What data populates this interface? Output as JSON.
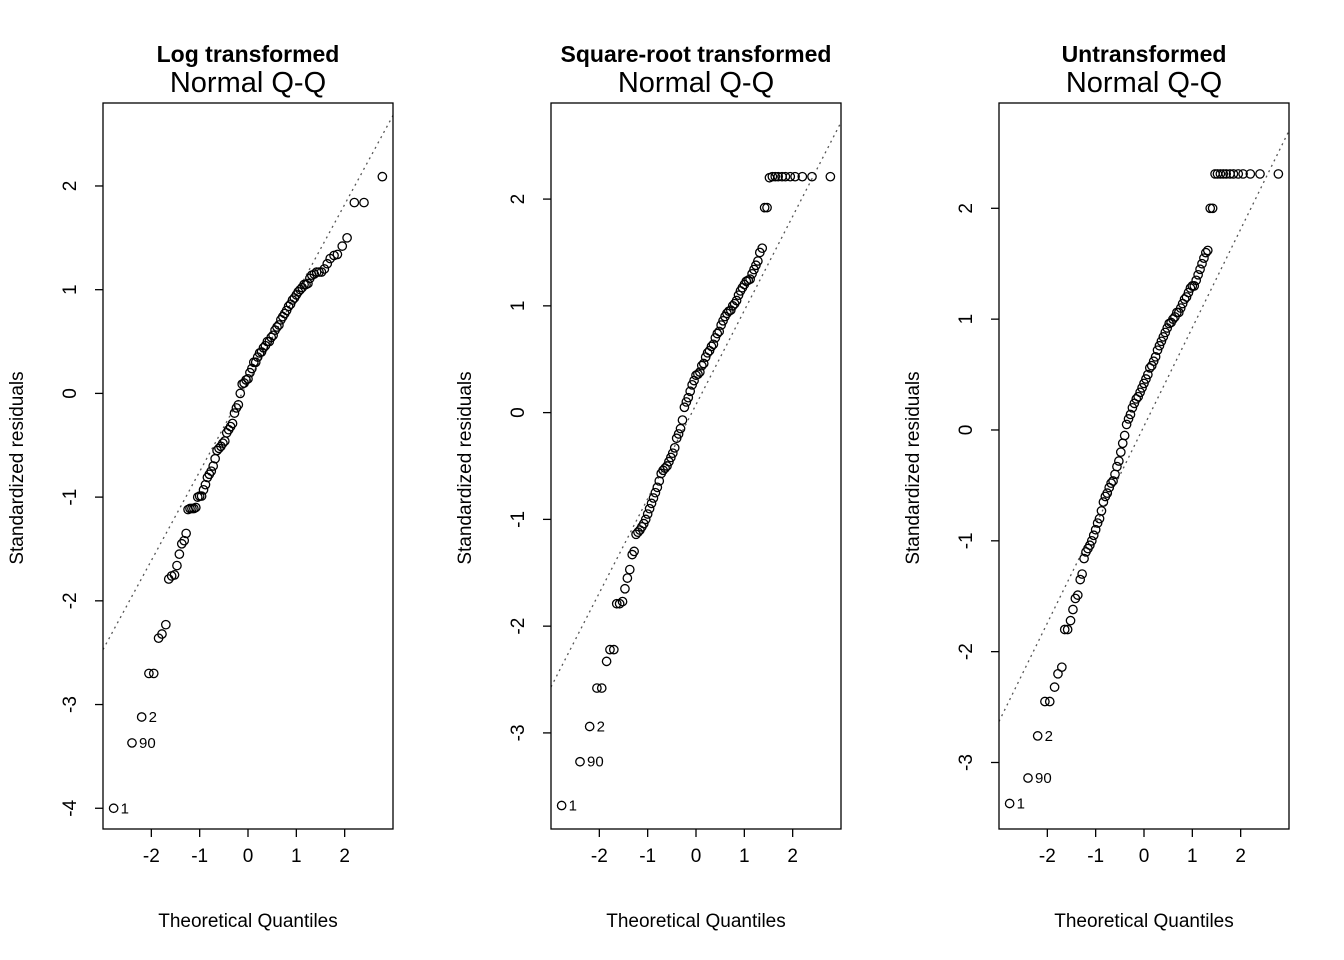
{
  "chart_data": [
    {
      "type": "scatter",
      "super_title": "Log transformed",
      "title": "Normal Q-Q",
      "xlabel": "Theoretical Quantiles",
      "ylabel": "Standardized residuals",
      "xlim": [
        -3.0,
        3.0
      ],
      "ylim": [
        -4.2,
        2.8
      ],
      "xticks": [
        -2,
        -1,
        0,
        1,
        2
      ],
      "yticks": [
        -4,
        -3,
        -2,
        -1,
        0,
        1,
        2
      ],
      "ref_line": [
        [
          -3.0,
          -2.47
        ],
        [
          3.0,
          2.68
        ]
      ],
      "points_x": [
        -2.78,
        -2.4,
        -2.2,
        -2.05,
        -1.95,
        -1.85,
        -1.78,
        -1.7,
        -1.64,
        -1.58,
        -1.52,
        -1.47,
        -1.42,
        -1.37,
        -1.32,
        -1.28,
        -1.24,
        -1.2,
        -1.16,
        -1.12,
        -1.08,
        -1.04,
        -1.0,
        -0.96,
        -0.92,
        -0.88,
        -0.84,
        -0.8,
        -0.76,
        -0.72,
        -0.68,
        -0.64,
        -0.6,
        -0.56,
        -0.52,
        -0.48,
        -0.44,
        -0.4,
        -0.36,
        -0.32,
        -0.28,
        -0.24,
        -0.2,
        -0.16,
        -0.12,
        -0.08,
        -0.04,
        0.0,
        0.04,
        0.08,
        0.12,
        0.16,
        0.2,
        0.24,
        0.28,
        0.32,
        0.36,
        0.4,
        0.44,
        0.48,
        0.52,
        0.56,
        0.6,
        0.64,
        0.68,
        0.72,
        0.76,
        0.8,
        0.84,
        0.88,
        0.92,
        0.96,
        1.0,
        1.04,
        1.08,
        1.12,
        1.16,
        1.2,
        1.24,
        1.28,
        1.32,
        1.37,
        1.42,
        1.47,
        1.52,
        1.58,
        1.64,
        1.7,
        1.78,
        1.85,
        1.95,
        2.05,
        2.2,
        2.4,
        2.78
      ],
      "points_y": [
        -4.0,
        -3.37,
        -3.12,
        -2.7,
        -2.7,
        -2.36,
        -2.32,
        -2.23,
        -1.79,
        -1.76,
        -1.75,
        -1.66,
        -1.55,
        -1.45,
        -1.42,
        -1.35,
        -1.12,
        -1.11,
        -1.11,
        -1.11,
        -1.1,
        -1.0,
        -0.99,
        -0.99,
        -0.93,
        -0.88,
        -0.81,
        -0.78,
        -0.75,
        -0.7,
        -0.63,
        -0.55,
        -0.53,
        -0.51,
        -0.48,
        -0.46,
        -0.38,
        -0.35,
        -0.32,
        -0.29,
        -0.19,
        -0.14,
        -0.11,
        0.0,
        0.09,
        0.1,
        0.13,
        0.14,
        0.2,
        0.24,
        0.3,
        0.3,
        0.35,
        0.39,
        0.4,
        0.44,
        0.46,
        0.5,
        0.5,
        0.54,
        0.56,
        0.61,
        0.64,
        0.66,
        0.71,
        0.74,
        0.77,
        0.8,
        0.84,
        0.86,
        0.9,
        0.92,
        0.95,
        0.98,
        1.0,
        1.02,
        1.05,
        1.05,
        1.06,
        1.11,
        1.14,
        1.15,
        1.17,
        1.17,
        1.17,
        1.2,
        1.25,
        1.3,
        1.33,
        1.34,
        1.42,
        1.5,
        1.84,
        1.84,
        2.09
      ],
      "labeled_points": [
        {
          "index": 0,
          "label": "1"
        },
        {
          "index": 2,
          "label": "2"
        },
        {
          "index": 1,
          "label": "90"
        }
      ]
    },
    {
      "type": "scatter",
      "super_title": "Square-root transformed",
      "title": "Normal Q-Q",
      "xlabel": "Theoretical Quantiles",
      "ylabel": "Standardized residuals",
      "xlim": [
        -3.0,
        3.0
      ],
      "ylim": [
        -3.9,
        2.9
      ],
      "xticks": [
        -2,
        -1,
        0,
        1,
        2
      ],
      "yticks": [
        -3,
        -2,
        -1,
        0,
        1,
        2
      ],
      "ref_line": [
        [
          -3.0,
          -2.57
        ],
        [
          3.0,
          2.72
        ]
      ],
      "points_x": [
        -2.78,
        -2.4,
        -2.2,
        -2.05,
        -1.95,
        -1.85,
        -1.78,
        -1.7,
        -1.64,
        -1.58,
        -1.52,
        -1.47,
        -1.42,
        -1.37,
        -1.32,
        -1.28,
        -1.24,
        -1.2,
        -1.16,
        -1.12,
        -1.08,
        -1.04,
        -1.0,
        -0.96,
        -0.92,
        -0.88,
        -0.84,
        -0.8,
        -0.76,
        -0.72,
        -0.68,
        -0.64,
        -0.6,
        -0.56,
        -0.52,
        -0.48,
        -0.44,
        -0.4,
        -0.36,
        -0.32,
        -0.28,
        -0.24,
        -0.2,
        -0.16,
        -0.12,
        -0.08,
        -0.04,
        0.0,
        0.04,
        0.08,
        0.12,
        0.16,
        0.2,
        0.24,
        0.28,
        0.32,
        0.36,
        0.4,
        0.44,
        0.48,
        0.52,
        0.56,
        0.6,
        0.64,
        0.68,
        0.72,
        0.76,
        0.8,
        0.84,
        0.88,
        0.92,
        0.96,
        1.0,
        1.04,
        1.08,
        1.12,
        1.16,
        1.2,
        1.24,
        1.28,
        1.32,
        1.37,
        1.42,
        1.47,
        1.52,
        1.58,
        1.64,
        1.7,
        1.78,
        1.85,
        1.95,
        2.05,
        2.2,
        2.4,
        2.78
      ],
      "points_y": [
        -3.68,
        -3.27,
        -2.94,
        -2.58,
        -2.58,
        -2.33,
        -2.22,
        -2.22,
        -1.79,
        -1.79,
        -1.77,
        -1.65,
        -1.55,
        -1.47,
        -1.33,
        -1.3,
        -1.14,
        -1.12,
        -1.1,
        -1.07,
        -1.04,
        -1.0,
        -0.95,
        -0.9,
        -0.85,
        -0.8,
        -0.75,
        -0.7,
        -0.64,
        -0.57,
        -0.54,
        -0.52,
        -0.5,
        -0.46,
        -0.42,
        -0.38,
        -0.33,
        -0.24,
        -0.2,
        -0.15,
        -0.07,
        0.05,
        0.1,
        0.14,
        0.2,
        0.26,
        0.3,
        0.35,
        0.36,
        0.38,
        0.44,
        0.46,
        0.52,
        0.56,
        0.58,
        0.62,
        0.64,
        0.7,
        0.74,
        0.76,
        0.82,
        0.86,
        0.9,
        0.93,
        0.95,
        0.96,
        1.0,
        1.02,
        1.05,
        1.1,
        1.14,
        1.17,
        1.2,
        1.23,
        1.24,
        1.25,
        1.3,
        1.34,
        1.38,
        1.42,
        1.5,
        1.54,
        1.92,
        1.92,
        2.2,
        2.21,
        2.21,
        2.21,
        2.21,
        2.21,
        2.21,
        2.21,
        2.21,
        2.21,
        2.21
      ],
      "labeled_points": [
        {
          "index": 0,
          "label": "1"
        },
        {
          "index": 2,
          "label": "2"
        },
        {
          "index": 1,
          "label": "90"
        }
      ]
    },
    {
      "type": "scatter",
      "super_title": "Untransformed",
      "title": "Normal Q-Q",
      "xlabel": "Theoretical Quantiles",
      "ylabel": "Standardized residuals",
      "xlim": [
        -3.0,
        3.0
      ],
      "ylim": [
        -3.6,
        2.95
      ],
      "xticks": [
        -2,
        -1,
        0,
        1,
        2
      ],
      "yticks": [
        -3,
        -2,
        -1,
        0,
        1,
        2
      ],
      "ref_line": [
        [
          -3.0,
          -2.63
        ],
        [
          3.0,
          2.7
        ]
      ],
      "points_x": [
        -2.78,
        -2.4,
        -2.2,
        -2.05,
        -1.95,
        -1.85,
        -1.78,
        -1.7,
        -1.64,
        -1.58,
        -1.52,
        -1.47,
        -1.42,
        -1.37,
        -1.32,
        -1.28,
        -1.24,
        -1.2,
        -1.16,
        -1.12,
        -1.08,
        -1.04,
        -1.0,
        -0.96,
        -0.92,
        -0.88,
        -0.84,
        -0.8,
        -0.76,
        -0.72,
        -0.68,
        -0.64,
        -0.6,
        -0.56,
        -0.52,
        -0.48,
        -0.44,
        -0.4,
        -0.36,
        -0.32,
        -0.28,
        -0.24,
        -0.2,
        -0.16,
        -0.12,
        -0.08,
        -0.04,
        0.0,
        0.04,
        0.08,
        0.12,
        0.16,
        0.2,
        0.24,
        0.28,
        0.32,
        0.36,
        0.4,
        0.44,
        0.48,
        0.52,
        0.56,
        0.6,
        0.64,
        0.68,
        0.72,
        0.76,
        0.8,
        0.84,
        0.88,
        0.92,
        0.96,
        1.0,
        1.04,
        1.08,
        1.12,
        1.16,
        1.2,
        1.24,
        1.28,
        1.32,
        1.37,
        1.42,
        1.47,
        1.52,
        1.58,
        1.64,
        1.7,
        1.78,
        1.85,
        1.95,
        2.05,
        2.2,
        2.4,
        2.78
      ],
      "points_y": [
        -3.37,
        -3.14,
        -2.76,
        -2.45,
        -2.45,
        -2.32,
        -2.2,
        -2.14,
        -1.8,
        -1.8,
        -1.72,
        -1.62,
        -1.52,
        -1.49,
        -1.35,
        -1.3,
        -1.16,
        -1.1,
        -1.07,
        -1.04,
        -1.0,
        -0.95,
        -0.9,
        -0.84,
        -0.8,
        -0.73,
        -0.65,
        -0.6,
        -0.57,
        -0.52,
        -0.48,
        -0.46,
        -0.4,
        -0.33,
        -0.28,
        -0.2,
        -0.12,
        -0.05,
        0.05,
        0.1,
        0.14,
        0.2,
        0.24,
        0.28,
        0.3,
        0.34,
        0.38,
        0.42,
        0.46,
        0.5,
        0.56,
        0.58,
        0.62,
        0.66,
        0.72,
        0.76,
        0.8,
        0.84,
        0.88,
        0.92,
        0.96,
        0.97,
        1.0,
        1.02,
        1.06,
        1.06,
        1.1,
        1.14,
        1.18,
        1.2,
        1.24,
        1.28,
        1.3,
        1.3,
        1.35,
        1.4,
        1.45,
        1.5,
        1.55,
        1.6,
        1.62,
        2.0,
        2.0,
        2.31,
        2.31,
        2.31,
        2.31,
        2.31,
        2.31,
        2.31,
        2.31,
        2.31,
        2.31,
        2.31,
        2.31
      ],
      "labeled_points": [
        {
          "index": 0,
          "label": "1"
        },
        {
          "index": 2,
          "label": "2"
        },
        {
          "index": 1,
          "label": "90"
        }
      ]
    }
  ]
}
